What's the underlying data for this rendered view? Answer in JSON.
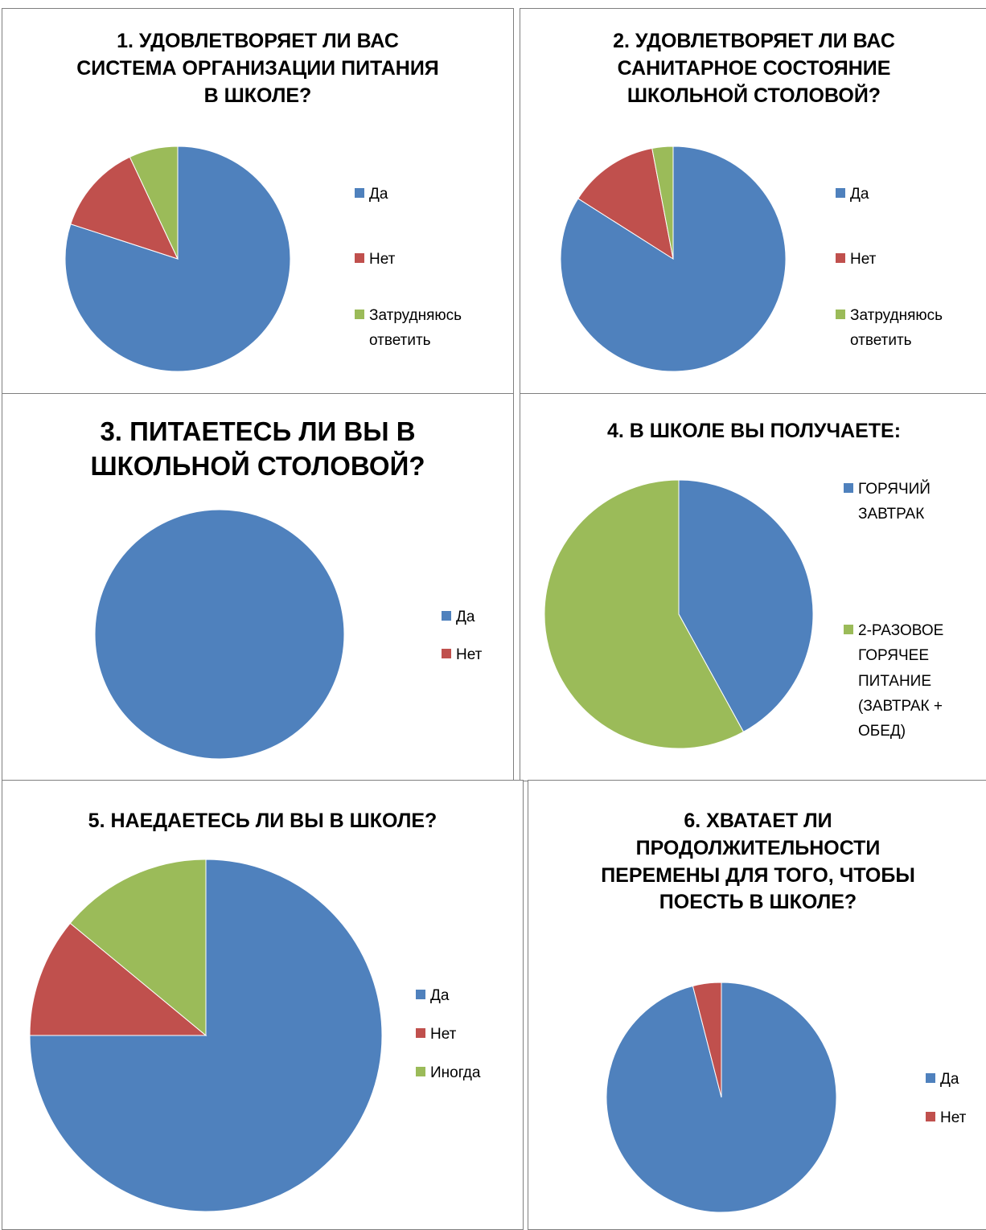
{
  "colors": {
    "blue": "#4f81bd",
    "red": "#c0504d",
    "green": "#9bbb59"
  },
  "chart_data": [
    {
      "type": "pie",
      "title": "1. УДОВЛЕТВОРЯЕТ ЛИ ВАС СИСТЕМА ОРГАНИЗАЦИИ ПИТАНИЯ В ШКОЛЕ?",
      "categories": [
        "Да",
        "Нет",
        "Затрудняюсь ответить"
      ],
      "values": [
        80,
        13,
        7
      ],
      "colors": [
        "#4f81bd",
        "#c0504d",
        "#9bbb59"
      ],
      "legend": "right"
    },
    {
      "type": "pie",
      "title": "2. УДОВЛЕТВОРЯЕТ ЛИ ВАС САНИТАРНОЕ СОСТОЯНИЕ ШКОЛЬНОЙ СТОЛОВОЙ?",
      "categories": [
        "Да",
        "Нет",
        "Затрудняюсь ответить"
      ],
      "values": [
        84,
        13,
        3
      ],
      "colors": [
        "#4f81bd",
        "#c0504d",
        "#9bbb59"
      ],
      "legend": "right"
    },
    {
      "type": "pie",
      "title": "3. ПИТАЕТЕСЬ ЛИ ВЫ В ШКОЛЬНОЙ СТОЛОВОЙ?",
      "categories": [
        "Да",
        "Нет"
      ],
      "values": [
        100,
        0
      ],
      "colors": [
        "#4f81bd",
        "#c0504d"
      ],
      "legend": "right"
    },
    {
      "type": "pie",
      "title": "4. В ШКОЛЕ ВЫ ПОЛУЧАЕТЕ:",
      "categories": [
        "ГОРЯЧИЙ ЗАВТРАК",
        "2-РАЗОВОЕ ГОРЯЧЕЕ ПИТАНИЕ (ЗАВТРАК + ОБЕД)"
      ],
      "values": [
        42,
        58
      ],
      "colors": [
        "#4f81bd",
        "#9bbb59"
      ],
      "legend": "right"
    },
    {
      "type": "pie",
      "title": "5. НАЕДАЕТЕСЬ ЛИ ВЫ В ШКОЛЕ?",
      "categories": [
        "Да",
        "Нет",
        "Иногда"
      ],
      "values": [
        75,
        11,
        14
      ],
      "colors": [
        "#4f81bd",
        "#c0504d",
        "#9bbb59"
      ],
      "legend": "right"
    },
    {
      "type": "pie",
      "title": "6. ХВАТАЕТ ЛИ ПРОДОЛЖИТЕЛЬНОСТИ ПЕРЕМЕНЫ ДЛЯ ТОГО, ЧТОБЫ ПОЕСТЬ В ШКОЛЕ?",
      "categories": [
        "Да",
        "Нет"
      ],
      "values": [
        96,
        4
      ],
      "colors": [
        "#4f81bd",
        "#c0504d"
      ],
      "legend": "right"
    }
  ],
  "legend_display": [
    [
      "Да",
      "Нет",
      "Затрудняюсь\nответить"
    ],
    [
      "Да",
      "Нет",
      "Затрудняюсь\nответить"
    ],
    [
      "Да",
      "Нет"
    ],
    [
      "ГОРЯЧИЙ\nЗАВТРАК",
      "2-РАЗОВОЕ\nГОРЯЧЕЕ\nПИТАНИЕ\n(ЗАВТРАК +\nОБЕД)"
    ],
    [
      "Да",
      "Нет",
      "Иногда"
    ],
    [
      "Да",
      "Нет"
    ]
  ]
}
